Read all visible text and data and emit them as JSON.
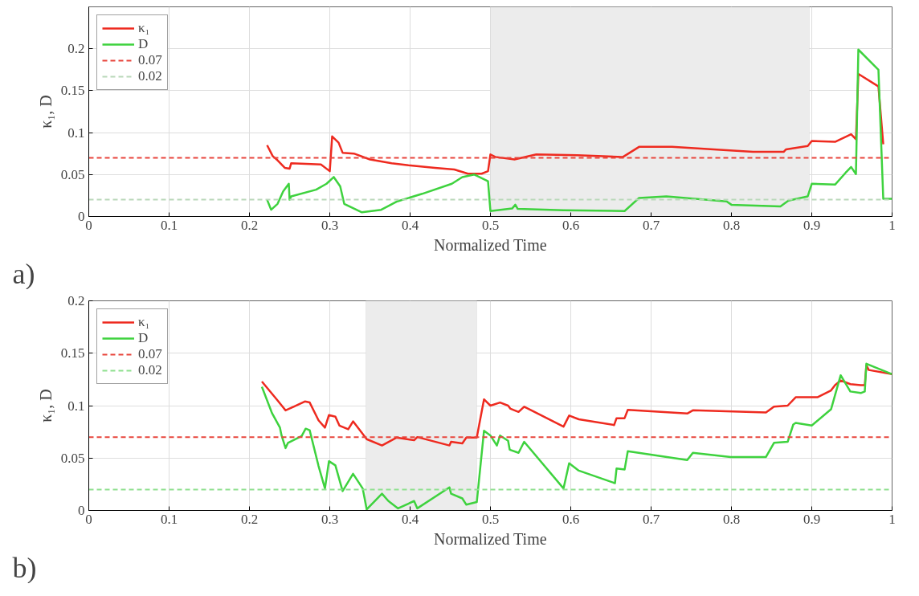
{
  "chart_data": [
    {
      "type": "line",
      "xlabel": "Normalized Time",
      "ylabel": "κ₁, D",
      "xlim": [
        0,
        1
      ],
      "ylim": [
        0,
        0.25
      ],
      "xticks": [
        0,
        0.1,
        0.2,
        0.3,
        0.4,
        0.5,
        0.6,
        0.7,
        0.8,
        0.9,
        1
      ],
      "yticks": [
        0,
        0.05,
        0.1,
        0.15,
        0.2
      ],
      "grid": true,
      "legend": "top left",
      "line_style": "solid",
      "annotations": [
        "a)"
      ],
      "series": [
        {
          "name": "κ₁",
          "color": "#ee2a1f",
          "x": [
            0.222,
            0.229,
            0.235,
            0.244,
            0.25,
            0.252,
            0.289,
            0.3,
            0.303,
            0.311,
            0.316,
            0.33,
            0.35,
            0.377,
            0.398,
            0.431,
            0.455,
            0.472,
            0.489,
            0.497,
            0.5,
            0.506,
            0.53,
            0.557,
            0.608,
            0.665,
            0.685,
            0.726,
            0.794,
            0.827,
            0.865,
            0.868,
            0.895,
            0.9,
            0.929,
            0.949,
            0.955,
            0.958,
            0.983,
            0.989
          ],
          "values": [
            0.085,
            0.072,
            0.067,
            0.058,
            0.057,
            0.0635,
            0.062,
            0.054,
            0.0955,
            0.088,
            0.076,
            0.075,
            0.068,
            0.0635,
            0.061,
            0.058,
            0.056,
            0.051,
            0.051,
            0.054,
            0.074,
            0.071,
            0.068,
            0.074,
            0.073,
            0.071,
            0.083,
            0.083,
            0.079,
            0.077,
            0.077,
            0.08,
            0.084,
            0.09,
            0.089,
            0.098,
            0.092,
            0.17,
            0.155,
            0.086
          ]
        },
        {
          "name": "D",
          "color": "#3ed23e",
          "x": [
            0.222,
            0.227,
            0.235,
            0.242,
            0.249,
            0.25,
            0.252,
            0.283,
            0.296,
            0.305,
            0.313,
            0.318,
            0.34,
            0.364,
            0.384,
            0.415,
            0.452,
            0.465,
            0.48,
            0.497,
            0.5,
            0.527,
            0.531,
            0.534,
            0.591,
            0.667,
            0.685,
            0.719,
            0.794,
            0.8,
            0.861,
            0.871,
            0.895,
            0.9,
            0.929,
            0.942,
            0.949,
            0.955,
            0.958,
            0.983,
            0.989,
            1.0
          ],
          "values": [
            0.02,
            0.008,
            0.015,
            0.03,
            0.039,
            0.02,
            0.024,
            0.032,
            0.039,
            0.047,
            0.036,
            0.015,
            0.005,
            0.008,
            0.018,
            0.027,
            0.039,
            0.047,
            0.05,
            0.042,
            0.0065,
            0.0095,
            0.014,
            0.009,
            0.0075,
            0.0065,
            0.022,
            0.024,
            0.018,
            0.014,
            0.012,
            0.019,
            0.024,
            0.039,
            0.038,
            0.052,
            0.059,
            0.0505,
            0.199,
            0.175,
            0.021,
            0.021
          ]
        }
      ],
      "ref_lines": [
        {
          "axis": "y",
          "value": 0.07,
          "label": "0.07",
          "color": "#e8453c",
          "line_style": "dashed"
        },
        {
          "axis": "y",
          "value": 0.02,
          "label": "0.02",
          "color": "#b9d8b9",
          "line_style": "dashed"
        }
      ],
      "bands": [
        {
          "axis": "x",
          "from": 0.5,
          "to": 0.897,
          "label": null,
          "color": "#ececec"
        }
      ]
    },
    {
      "type": "line",
      "xlabel": "Normalized Time",
      "ylabel": "κ₁, D",
      "xlim": [
        0,
        1
      ],
      "ylim": [
        0,
        0.2
      ],
      "xticks": [
        0,
        0.1,
        0.2,
        0.3,
        0.4,
        0.5,
        0.6,
        0.7,
        0.8,
        0.9,
        1
      ],
      "yticks": [
        0,
        0.05,
        0.1,
        0.15,
        0.2
      ],
      "grid": true,
      "legend": "top left",
      "line_style": "solid",
      "annotations": [
        "b)"
      ],
      "series": [
        {
          "name": "κ₁",
          "color": "#ee2a1f",
          "x": [
            0.2155,
            0.235,
            0.245,
            0.255,
            0.269,
            0.275,
            0.286,
            0.294,
            0.299,
            0.307,
            0.312,
            0.323,
            0.329,
            0.346,
            0.365,
            0.383,
            0.405,
            0.409,
            0.449,
            0.451,
            0.465,
            0.47,
            0.483,
            0.492,
            0.5,
            0.512,
            0.522,
            0.525,
            0.535,
            0.542,
            0.591,
            0.598,
            0.61,
            0.654,
            0.657,
            0.667,
            0.671,
            0.745,
            0.752,
            0.843,
            0.853,
            0.87,
            0.88,
            0.907,
            0.924,
            0.929,
            0.936,
            0.948,
            0.961,
            0.966,
            0.968,
            0.971,
            1.0
          ],
          "values": [
            0.123,
            0.105,
            0.0955,
            0.099,
            0.104,
            0.103,
            0.086,
            0.079,
            0.091,
            0.0895,
            0.081,
            0.0775,
            0.085,
            0.068,
            0.062,
            0.0695,
            0.067,
            0.07,
            0.062,
            0.0655,
            0.064,
            0.0695,
            0.0695,
            0.106,
            0.1,
            0.103,
            0.1,
            0.097,
            0.094,
            0.099,
            0.08,
            0.0905,
            0.087,
            0.0815,
            0.088,
            0.088,
            0.096,
            0.0925,
            0.0955,
            0.0935,
            0.099,
            0.1,
            0.108,
            0.108,
            0.1145,
            0.1195,
            0.124,
            0.1205,
            0.1195,
            0.1195,
            0.1385,
            0.134,
            0.13
          ]
        },
        {
          "name": "D",
          "color": "#3ed23e",
          "x": [
            0.2155,
            0.228,
            0.238,
            0.24,
            0.245,
            0.248,
            0.265,
            0.27,
            0.275,
            0.286,
            0.294,
            0.299,
            0.307,
            0.316,
            0.329,
            0.341,
            0.346,
            0.365,
            0.373,
            0.385,
            0.405,
            0.409,
            0.449,
            0.451,
            0.465,
            0.47,
            0.483,
            0.492,
            0.5,
            0.508,
            0.512,
            0.522,
            0.524,
            0.535,
            0.542,
            0.591,
            0.598,
            0.61,
            0.655,
            0.657,
            0.667,
            0.671,
            0.745,
            0.752,
            0.799,
            0.843,
            0.853,
            0.87,
            0.877,
            0.88,
            0.9,
            0.924,
            0.929,
            0.936,
            0.948,
            0.961,
            0.966,
            0.968,
            1.0
          ],
          "values": [
            0.118,
            0.093,
            0.079,
            0.0715,
            0.0595,
            0.0645,
            0.071,
            0.078,
            0.0765,
            0.0425,
            0.021,
            0.047,
            0.043,
            0.0185,
            0.035,
            0.021,
            0.001,
            0.016,
            0.009,
            0.002,
            0.009,
            0.002,
            0.022,
            0.016,
            0.0115,
            0.0055,
            0.008,
            0.076,
            0.0715,
            0.062,
            0.0715,
            0.0665,
            0.058,
            0.055,
            0.0655,
            0.021,
            0.045,
            0.038,
            0.026,
            0.04,
            0.039,
            0.0565,
            0.048,
            0.055,
            0.051,
            0.051,
            0.0645,
            0.0655,
            0.082,
            0.0835,
            0.081,
            0.0965,
            0.11,
            0.129,
            0.1135,
            0.112,
            0.1135,
            0.14,
            0.13
          ]
        }
      ],
      "ref_lines": [
        {
          "axis": "y",
          "value": 0.07,
          "label": "0.07",
          "color": "#e8453c",
          "line_style": "dashed"
        },
        {
          "axis": "y",
          "value": 0.02,
          "label": "0.02",
          "color": "#8fe08f",
          "line_style": "dashed"
        }
      ],
      "bands": [
        {
          "axis": "x",
          "from": 0.345,
          "to": 0.483,
          "label": null,
          "color": "#ececec"
        }
      ]
    }
  ]
}
